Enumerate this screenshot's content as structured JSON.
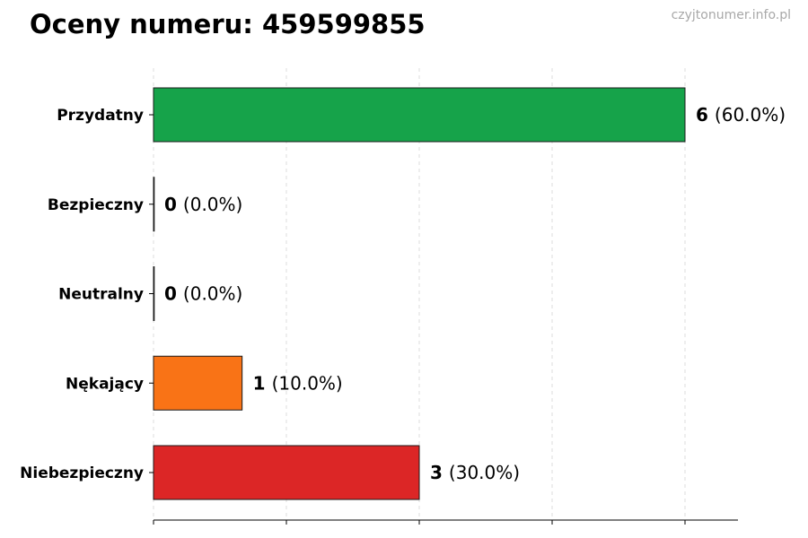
{
  "title": "Oceny numeru: 459599855",
  "watermark": "czyjtonumer.info.pl",
  "chart_data": {
    "type": "bar",
    "orientation": "horizontal",
    "title": "Oceny numeru: 459599855",
    "categories": [
      "Przydatny",
      "Bezpieczny",
      "Neutralny",
      "Nękający",
      "Niebezpieczny"
    ],
    "values": [
      6,
      0,
      0,
      1,
      3
    ],
    "percent_labels": [
      "(60.0%)",
      "(0.0%)",
      "(0.0%)",
      "(10.0%)",
      "(30.0%)"
    ],
    "colors": [
      "#16a34a",
      "#16a34a",
      "#9ca3af",
      "#f97316",
      "#dc2626"
    ],
    "xlim": [
      0,
      6.6
    ],
    "x_ticks": [
      0,
      1.5,
      3,
      4.5,
      6
    ],
    "grid": true,
    "xlabel": "",
    "ylabel": ""
  }
}
